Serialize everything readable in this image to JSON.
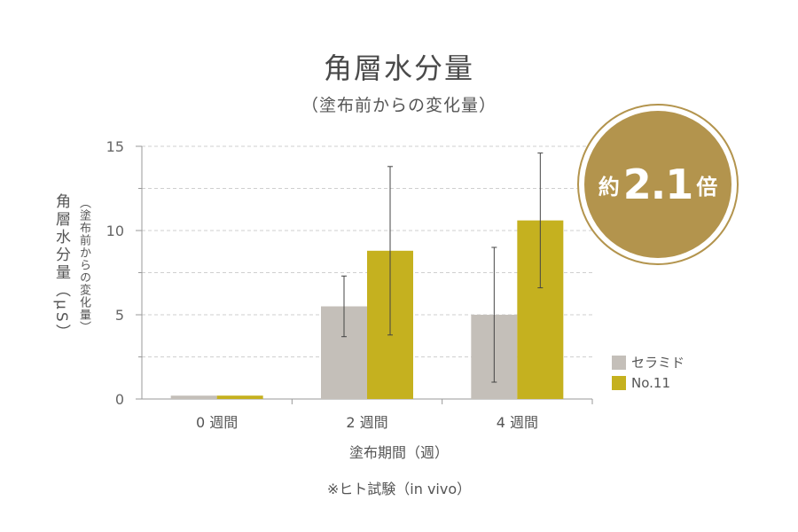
{
  "chart_data": {
    "type": "bar",
    "title": "角層水分量",
    "subtitle": "（塗布前からの変化量）",
    "ylabel": "角層水分量",
    "ylabel_sub": "（塗布前からの変化量）",
    "ylabel_unit": "（μS）",
    "xlabel": "塗布期間（週）",
    "categories": [
      "0 週間",
      "2 週間",
      "4 週間"
    ],
    "ylim": [
      0,
      15
    ],
    "yticks": [
      0,
      5,
      10,
      15
    ],
    "grid": true,
    "legend_position": "right",
    "series": [
      {
        "name": "セラミド",
        "color": "#c4bfb9",
        "values": [
          0.2,
          5.5,
          5.0
        ],
        "error": [
          0,
          1.8,
          4.0
        ]
      },
      {
        "name": "No.11",
        "color": "#c5b11f",
        "values": [
          0.2,
          8.8,
          10.6
        ],
        "error": [
          0,
          5.0,
          4.0
        ]
      }
    ]
  },
  "badge": {
    "prefix": "約",
    "value": "2.1",
    "suffix": "倍",
    "color": "#b3944d"
  },
  "note": "※ヒト試験（in vivo）"
}
